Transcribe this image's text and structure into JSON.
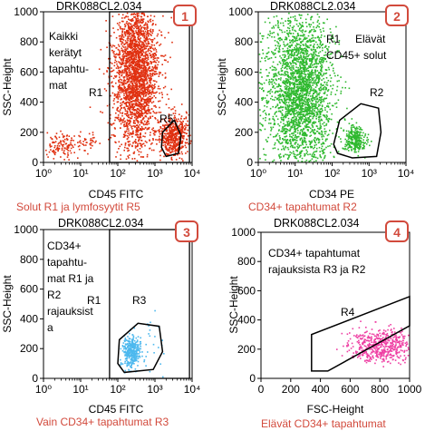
{
  "chart_data": [
    {
      "type": "scatter",
      "file": "DRK088CL2.034",
      "badge": "1",
      "caption": "Solut R1 ja lymfosyytit R5",
      "xlabel": "CD45 FITC",
      "ylabel": "SSC-Height",
      "xscale": "log",
      "xlim": [
        1,
        10000
      ],
      "ylim": [
        0,
        1000
      ],
      "x_ticks": [
        "10⁰",
        "10¹",
        "10²",
        "10³",
        "10⁴"
      ],
      "y_ticks": [
        "0",
        "200",
        "400",
        "600",
        "800",
        "1000"
      ],
      "dot_color": "#e03010",
      "gates": [
        {
          "label": "R1",
          "shape": "rectangle",
          "x": [
            60,
            8500
          ],
          "y": [
            0,
            1000
          ]
        },
        {
          "label": "R5",
          "shape": "polygon",
          "x": [
            1600,
            3300,
            5000,
            4300,
            2000,
            1500
          ],
          "y": [
            200,
            280,
            180,
            60,
            40,
            100
          ]
        }
      ],
      "annotations": [
        "Kaikki",
        "kerätyt",
        "tapahtu-",
        "mat"
      ],
      "populations": [
        {
          "x_center": 300,
          "x_spread_decades": 0.3,
          "y_center": 600,
          "y_spread": 260,
          "count": 2600
        },
        {
          "x_center": 3000,
          "x_spread_decades": 0.18,
          "y_center": 180,
          "y_spread": 70,
          "count": 520
        },
        {
          "x_center": 3,
          "x_spread_decades": 0.2,
          "y_center": 120,
          "y_spread": 40,
          "count": 120
        },
        {
          "x_center": 15,
          "x_spread_decades": 0.15,
          "y_center": 140,
          "y_spread": 30,
          "count": 40
        }
      ]
    },
    {
      "type": "scatter",
      "file": "DRK088CL2.034",
      "badge": "2",
      "caption": "CD34+ tapahtumat R2",
      "xlabel": "CD34 PE",
      "ylabel": "SSC-Height",
      "xscale": "log",
      "xlim": [
        1,
        10000
      ],
      "ylim": [
        0,
        1000
      ],
      "x_ticks": [
        "10⁰",
        "10¹",
        "10²",
        "10³",
        "10⁴"
      ],
      "y_ticks": [
        "0",
        "200",
        "400",
        "600",
        "800",
        "1000"
      ],
      "dot_color": "#2fb92f",
      "gates": [
        {
          "label": "R2",
          "shape": "polygon",
          "x": [
            110,
            160,
            600,
            1800,
            2100,
            1600,
            350,
            140
          ],
          "y": [
            120,
            280,
            390,
            360,
            200,
            40,
            30,
            60
          ]
        }
      ],
      "annotations": [
        "R1",
        "Elävät",
        "CD45+ solut"
      ],
      "populations": [
        {
          "x_center": 14,
          "x_spread_decades": 0.42,
          "y_center": 470,
          "y_spread": 260,
          "count": 2600
        },
        {
          "x_center": 400,
          "x_spread_decades": 0.15,
          "y_center": 160,
          "y_spread": 45,
          "count": 260
        },
        {
          "x_center": 1,
          "x_spread_decades": 0.25,
          "y_center": 500,
          "y_spread": 260,
          "count": 150
        }
      ]
    },
    {
      "type": "scatter",
      "file": "DRK088CL2.034",
      "badge": "3",
      "caption": "Vain CD34+ tapahtumat R3",
      "xlabel": "CD45 FITC",
      "ylabel": "SSC-Height",
      "xscale": "log",
      "xlim": [
        1,
        10000
      ],
      "ylim": [
        0,
        1000
      ],
      "x_ticks": [
        "10⁰",
        "10¹",
        "10²",
        "10³",
        "10⁴"
      ],
      "y_ticks": [
        "0",
        "200",
        "400",
        "600",
        "800",
        "1000"
      ],
      "dot_color": "#4db8ee",
      "gates": [
        {
          "label": "R1",
          "shape": "rectangle",
          "x": [
            60,
            8500
          ],
          "y": [
            0,
            1000
          ]
        },
        {
          "label": "R3",
          "shape": "polygon",
          "x": [
            110,
            100,
            150,
            900,
            1600,
            1300,
            350
          ],
          "y": [
            260,
            100,
            40,
            60,
            180,
            350,
            370
          ]
        }
      ],
      "annotations": [
        "CD34+",
        "tapahtu-",
        "mat R1 ja",
        "R2",
        "rajauksist",
        "a"
      ],
      "populations": [
        {
          "x_center": 220,
          "x_spread_decades": 0.12,
          "y_center": 180,
          "y_spread": 50,
          "count": 340
        },
        {
          "x_center": 900,
          "x_spread_decades": 0.2,
          "y_center": 240,
          "y_spread": 90,
          "count": 25
        }
      ]
    },
    {
      "type": "scatter",
      "file": "DRK088CL2.034",
      "badge": "4",
      "caption": "Elävät CD34+ tapahtumat",
      "xlabel": "FSC-Height",
      "ylabel": "SSC-Height",
      "xscale": "linear",
      "xlim": [
        0,
        1000
      ],
      "ylim": [
        0,
        1000
      ],
      "x_ticks": [
        "0",
        "200",
        "400",
        "600",
        "800",
        "1000"
      ],
      "y_ticks": [
        "0",
        "200",
        "400",
        "600",
        "800",
        "1000"
      ],
      "dot_color": "#ee3fa3",
      "gates": [
        {
          "label": "R4",
          "shape": "polygon",
          "x": [
            340,
            340,
            1000,
            1000,
            450
          ],
          "y": [
            50,
            300,
            560,
            360,
            50
          ]
        }
      ],
      "annotations": [
        "CD34+ tapahtumat",
        "rajauksista R3 ja R2"
      ],
      "populations": [
        {
          "x_center": 800,
          "x_spread": 110,
          "y_center": 230,
          "y_spread": 55,
          "count": 520
        }
      ]
    }
  ]
}
